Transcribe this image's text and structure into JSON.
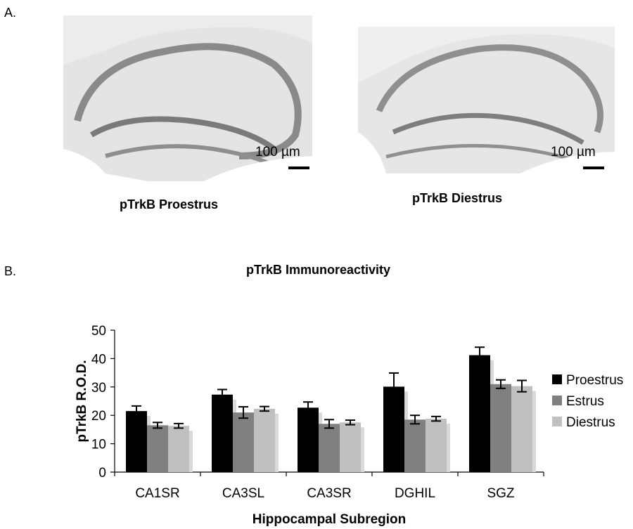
{
  "panel_a_label": "A.",
  "panel_b_label": "B.",
  "micrographs": [
    {
      "scale_label": "100 µm",
      "caption": "pTrkB Proestrus"
    },
    {
      "scale_label": "100 µm",
      "caption": "pTrkB Diestrus"
    }
  ],
  "chart_data": {
    "type": "bar",
    "title": "pTrkB Immunoreactivity",
    "xlabel": "Hippocampal Subregion",
    "ylabel": "pTrkB R.O.D.",
    "categories": [
      "CA1SR",
      "CA3SL",
      "CA3SR",
      "DGHIL",
      "SGZ"
    ],
    "ylim": [
      0,
      50
    ],
    "yticks": [
      0,
      10,
      20,
      30,
      40,
      50
    ],
    "legend_position": "right",
    "series": [
      {
        "name": "Proestrus",
        "color": "#000000",
        "values": [
          21.5,
          27.3,
          22.7,
          30.1,
          41.2
        ],
        "errors": [
          1.8,
          1.8,
          2.0,
          4.8,
          2.8
        ]
      },
      {
        "name": "Estrus",
        "color": "#808080",
        "values": [
          16.5,
          21.0,
          17.0,
          18.5,
          31.0
        ],
        "errors": [
          1.0,
          2.0,
          1.5,
          1.5,
          1.5
        ]
      },
      {
        "name": "Diestrus",
        "color": "#c0c0c0",
        "values": [
          16.3,
          22.3,
          17.5,
          18.8,
          30.3
        ],
        "errors": [
          0.8,
          0.8,
          0.8,
          0.8,
          2.0
        ]
      }
    ]
  }
}
